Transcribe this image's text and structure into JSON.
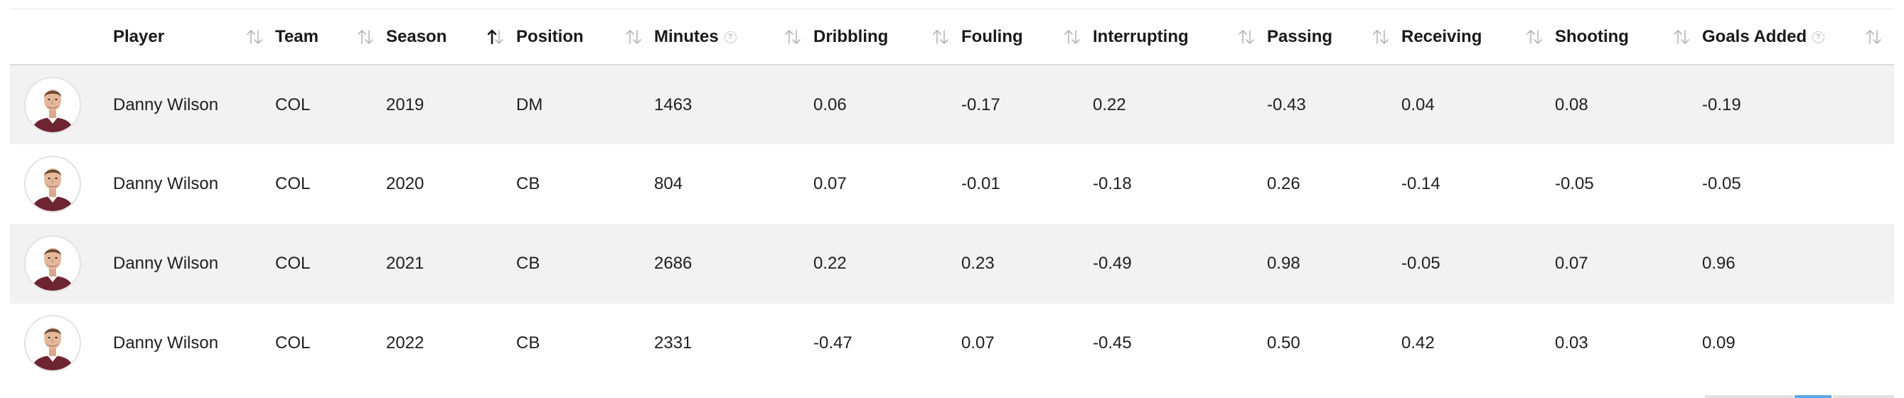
{
  "table": {
    "columns": [
      {
        "key": "avatar",
        "label": ""
      },
      {
        "key": "player",
        "label": "Player",
        "sort": "none"
      },
      {
        "key": "team",
        "label": "Team",
        "sort": "none"
      },
      {
        "key": "season",
        "label": "Season",
        "sort": "ascending"
      },
      {
        "key": "position",
        "label": "Position",
        "sort": "none"
      },
      {
        "key": "minutes",
        "label": "Minutes",
        "sort": "none",
        "info": true
      },
      {
        "key": "dribbling",
        "label": "Dribbling",
        "sort": "none"
      },
      {
        "key": "fouling",
        "label": "Fouling",
        "sort": "none"
      },
      {
        "key": "interrupting",
        "label": "Interrupting",
        "sort": "none"
      },
      {
        "key": "passing",
        "label": "Passing",
        "sort": "none"
      },
      {
        "key": "receiving",
        "label": "Receiving",
        "sort": "none"
      },
      {
        "key": "shooting",
        "label": "Shooting",
        "sort": "none"
      },
      {
        "key": "goals_added",
        "label": "Goals Added",
        "sort": "none",
        "info": true
      }
    ],
    "info_glyph": "?",
    "rows": [
      {
        "player": "Danny Wilson",
        "team": "COL",
        "season": "2019",
        "position": "DM",
        "minutes": "1463",
        "dribbling": "0.06",
        "fouling": "-0.17",
        "interrupting": "0.22",
        "passing": "-0.43",
        "receiving": "0.04",
        "shooting": "0.08",
        "goals_added": "-0.19"
      },
      {
        "player": "Danny Wilson",
        "team": "COL",
        "season": "2020",
        "position": "CB",
        "minutes": "804",
        "dribbling": "0.07",
        "fouling": "-0.01",
        "interrupting": "-0.18",
        "passing": "0.26",
        "receiving": "-0.14",
        "shooting": "-0.05",
        "goals_added": "-0.05"
      },
      {
        "player": "Danny Wilson",
        "team": "COL",
        "season": "2021",
        "position": "CB",
        "minutes": "2686",
        "dribbling": "0.22",
        "fouling": "0.23",
        "interrupting": "-0.49",
        "passing": "0.98",
        "receiving": "-0.05",
        "shooting": "0.07",
        "goals_added": "0.96"
      },
      {
        "player": "Danny Wilson",
        "team": "COL",
        "season": "2022",
        "position": "CB",
        "minutes": "2331",
        "dribbling": "-0.47",
        "fouling": "0.07",
        "interrupting": "-0.45",
        "passing": "0.50",
        "receiving": "0.42",
        "shooting": "0.03",
        "goals_added": "0.09"
      }
    ]
  },
  "colors": {
    "row_shade": "#f2f2f2",
    "header_border": "#dcdcdc",
    "sort_inactive": "#b5b5b5",
    "sort_active": "#1a1a1a",
    "pager_active": "#5aa7ea"
  },
  "icons": {
    "sort": "sort-arrows-icon",
    "info": "info-circle-icon",
    "avatar": "player-headshot"
  }
}
